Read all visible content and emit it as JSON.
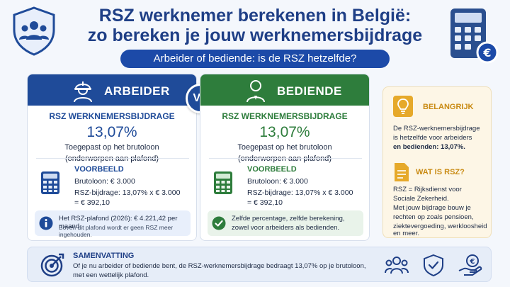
{
  "header": {
    "title_line1": "RSZ werknemer berekenen in België:",
    "title_line2": "zo bereken je jouw werknemersbijdrage",
    "subtitle": "Arbeider of bediende: is de RSZ hetzelfde?"
  },
  "vs_label": "VS",
  "arbeider": {
    "label": "ARBEIDER",
    "section": "RSZ WERKNEMERSBIJDRAGE",
    "percentage": "13,07%",
    "applied1": "Toegepast op het brutoloon",
    "applied2": "(onderworpen aan plafond)",
    "example_title": "VOORBEELD",
    "example_line1": "Brutoloon: € 3.000",
    "example_line2": "RSZ-bijdrage: 13,07% x € 3.000",
    "example_line3": "= € 392,10",
    "note1": "Het RSZ-plafond (2026): € 4.221,42 per maand",
    "note2": "Boven dit plafond wordt er geen RSZ meer ingehouden."
  },
  "bediende": {
    "label": "BEDIENDE",
    "section": "RSZ WERKNEMERSBIJDRAGE",
    "percentage": "13,07%",
    "applied1": "Toegepast op het brutoloon",
    "applied2": "(onderworpen aan plafond)",
    "example_title": "VOORBEELD",
    "example_line1": "Brutoloon: € 3.000",
    "example_line2": "RSZ-bijdrage: 13,07% x € 3.000",
    "example_line3": "= € 392,10",
    "note1": "Zelfde percentage, zelfde berekening,",
    "note2": "zowel voor arbeiders als bedienden."
  },
  "sidebar": {
    "important_title": "BELANGRIJK",
    "important_l1": "De RSZ-werknemersbijdrage",
    "important_l2": "is hetzelfde voor arbeiders",
    "important_l3": "en bedienden: 13,07%.",
    "what_title": "WAT IS RSZ?",
    "what_l1": "RSZ = Rijksdienst voor",
    "what_l2": "Sociale Zekerheid.",
    "what_l3": "Met jouw bijdrage bouw je",
    "what_l4": "rechten op zoals pensioen,",
    "what_l5": "ziektevergoeding, werkloosheid",
    "what_l6": "en meer."
  },
  "summary": {
    "title": "SAMENVATTING",
    "line1": "Of je nu arbeider of bediende bent, de RSZ-werknemersbijdrage bedraagt 13,07% op je brutoloon,",
    "line2": "met een wettelijk plafond."
  },
  "colors": {
    "blue": "#1f4b99",
    "green": "#2e7d3c",
    "gold": "#c98a12"
  }
}
